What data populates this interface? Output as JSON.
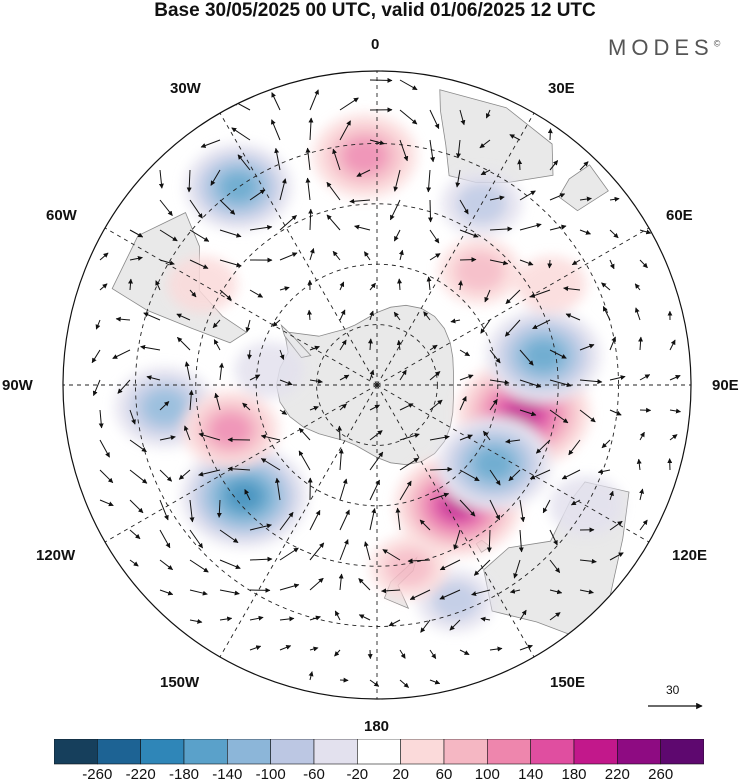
{
  "title": "Base 30/05/2025 00 UTC, valid 01/06/2025 12 UTC",
  "brand": "MODES",
  "brand_mark": "©",
  "lon_labels": {
    "l0": "0",
    "l30e": "30E",
    "l60e": "60E",
    "l90e": "90E",
    "l120e": "120E",
    "l150e": "150E",
    "l180": "180",
    "l150w": "150W",
    "l120w": "120W",
    "l90w": "90W",
    "l60w": "60W",
    "l30w": "30W"
  },
  "reference_vector": {
    "label": "30"
  },
  "colorbar": {
    "colors": [
      "#163f5c",
      "#1d6394",
      "#2f86b8",
      "#5aa1ca",
      "#8cb6d9",
      "#bcc7e3",
      "#e3e1ee",
      "#ffffff",
      "#fbdada",
      "#f5b7c3",
      "#ee86ad",
      "#e04ea0",
      "#c2188b",
      "#8e0b82",
      "#5e086f"
    ],
    "ticks": [
      "-260",
      "-220",
      "-180",
      "-140",
      "-100",
      "-60",
      "-20",
      "20",
      "60",
      "100",
      "140",
      "180",
      "220",
      "260"
    ]
  },
  "colors": {
    "land": "#e9e9e9",
    "coast": "#8a8a8a",
    "grid": "#222222"
  },
  "anomalies": [
    {
      "lon": 101,
      "lat": -53,
      "value": 210
    },
    {
      "lon": 146,
      "lat": -54,
      "value": 190
    },
    {
      "lon": -130,
      "lat": -47,
      "value": -190
    },
    {
      "lon": 80,
      "lat": -48,
      "value": -160
    },
    {
      "lon": 124,
      "lat": -55,
      "value": -160
    },
    {
      "lon": -35,
      "lat": -30,
      "value": -140
    },
    {
      "lon": -3,
      "lat": -33,
      "value": 130
    },
    {
      "lon": -96,
      "lat": -37,
      "value": -120
    },
    {
      "lon": -107,
      "lat": -52,
      "value": 110
    },
    {
      "lon": 42,
      "lat": -52,
      "value": 70
    },
    {
      "lon": 30,
      "lat": -38,
      "value": -70
    },
    {
      "lon": 60,
      "lat": -40,
      "value": 40
    },
    {
      "lon": 160,
      "lat": -33,
      "value": -60
    },
    {
      "lon": -60,
      "lat": -40,
      "value": 40
    },
    {
      "lon": -82,
      "lat": -63,
      "value": -40
    },
    {
      "lon": 120,
      "lat": -30,
      "value": -50
    },
    {
      "lon": 170,
      "lat": -44,
      "value": 60
    }
  ]
}
